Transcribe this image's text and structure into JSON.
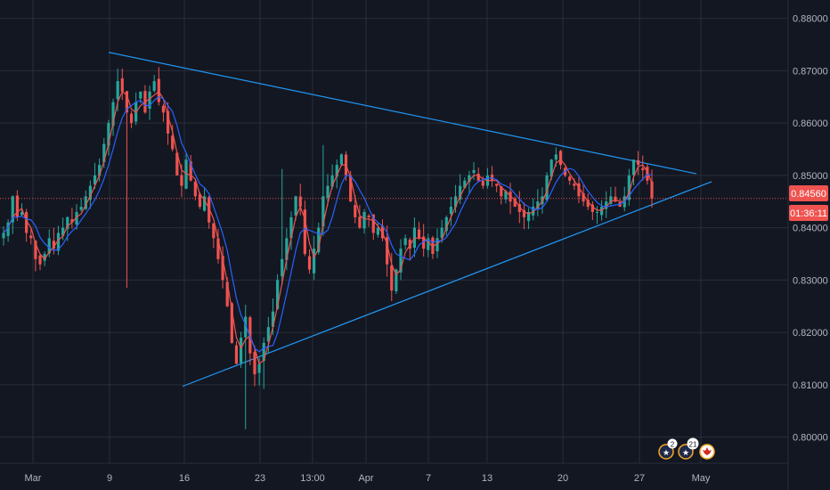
{
  "chart_data": {
    "type": "candlestick",
    "title": "",
    "xlabel": "",
    "ylabel": "",
    "ylim": [
      0.795,
      0.8835
    ],
    "y_ticks": [
      "0.88000",
      "0.87000",
      "0.86000",
      "0.85000",
      "0.84000",
      "0.83000",
      "0.82000",
      "0.81000",
      "0.80000"
    ],
    "x_ticks": [
      "Mar",
      "9",
      "16",
      "23",
      "13:00",
      "Apr",
      "7",
      "13",
      "20",
      "27",
      "May"
    ],
    "last_price": "0.84560",
    "countdown": "01:36:11",
    "colors": {
      "background": "#131722",
      "up": "#26a69a",
      "down": "#ef5350",
      "ma_fast": "#ef5350",
      "ma_slow": "#2962ff",
      "trendline": "#2196f3",
      "grid": "#2a2e39",
      "price_line": "#ef5350"
    },
    "trendlines": [
      {
        "name": "upper-trendline",
        "from": [
          0.8735,
          0.8735
        ],
        "to": [
          0.8503,
          0.8503
        ]
      },
      {
        "name": "lower-trendline",
        "from": [
          0.8097,
          0.8097
        ],
        "to": [
          0.8488,
          0.8488
        ]
      }
    ],
    "events": [
      {
        "icon": "flag-au-icon",
        "label": "2"
      },
      {
        "icon": "flag-au-icon",
        "label": "21"
      },
      {
        "icon": "flag-ca-icon",
        "label": ""
      }
    ],
    "close_path": [
      0.839,
      0.841,
      0.846,
      0.842,
      0.843,
      0.839,
      0.838,
      0.834,
      0.833,
      0.835,
      0.838,
      0.836,
      0.839,
      0.84,
      0.842,
      0.841,
      0.843,
      0.844,
      0.846,
      0.848,
      0.85,
      0.852,
      0.856,
      0.86,
      0.864,
      0.868,
      0.866,
      0.862,
      0.86,
      0.864,
      0.866,
      0.862,
      0.866,
      0.868,
      0.864,
      0.862,
      0.858,
      0.855,
      0.85,
      0.848,
      0.853,
      0.849,
      0.846,
      0.844,
      0.846,
      0.841,
      0.838,
      0.834,
      0.83,
      0.825,
      0.818,
      0.814,
      0.819,
      0.823,
      0.816,
      0.812,
      0.814,
      0.818,
      0.821,
      0.824,
      0.83,
      0.834,
      0.838,
      0.842,
      0.846,
      0.844,
      0.835,
      0.832,
      0.836,
      0.84,
      0.846,
      0.848,
      0.85,
      0.852,
      0.854,
      0.85,
      0.845,
      0.842,
      0.84,
      0.843,
      0.842,
      0.839,
      0.84,
      0.838,
      0.833,
      0.828,
      0.832,
      0.836,
      0.838,
      0.836,
      0.84,
      0.838,
      0.836,
      0.838,
      0.835,
      0.838,
      0.84,
      0.842,
      0.844,
      0.846,
      0.848,
      0.849,
      0.85,
      0.851,
      0.849,
      0.848,
      0.85,
      0.849,
      0.848,
      0.846,
      0.847,
      0.845,
      0.844,
      0.843,
      0.842,
      0.843,
      0.844,
      0.845,
      0.846,
      0.85,
      0.853,
      0.854,
      0.852,
      0.85,
      0.849,
      0.848,
      0.846,
      0.845,
      0.844,
      0.843,
      0.843,
      0.844,
      0.845,
      0.846,
      0.845,
      0.844,
      0.846,
      0.85,
      0.853,
      0.852,
      0.851,
      0.849,
      0.8456
    ]
  }
}
